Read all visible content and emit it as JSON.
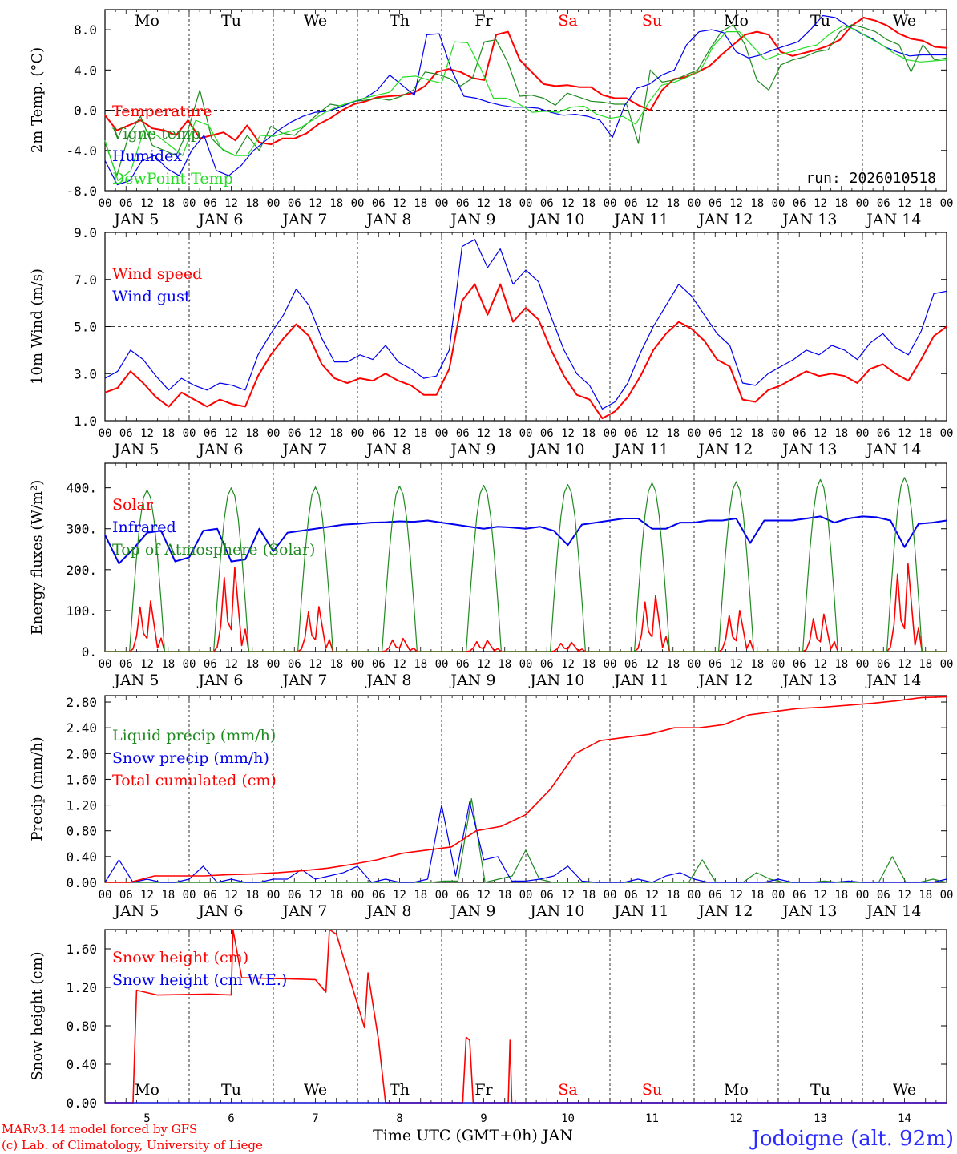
{
  "colors": {
    "red": "#ff0000",
    "green": "#1f8a1f",
    "blue": "#0000ee",
    "lightgreen": "#22dd22",
    "label_blue": "#2b2bff"
  },
  "days": [
    {
      "weekday": "Mo",
      "date": "JAN  5",
      "num": "5",
      "weekend": false
    },
    {
      "weekday": "Tu",
      "date": "JAN  6",
      "num": "6",
      "weekend": false
    },
    {
      "weekday": "We",
      "date": "JAN  7",
      "num": "7",
      "weekend": false
    },
    {
      "weekday": "Th",
      "date": "JAN  8",
      "num": "8",
      "weekend": false
    },
    {
      "weekday": "Fr",
      "date": "JAN  9",
      "num": "9",
      "weekend": false
    },
    {
      "weekday": "Sa",
      "date": "JAN 10",
      "num": "10",
      "weekend": true
    },
    {
      "weekday": "Su",
      "date": "JAN 11",
      "num": "11",
      "weekend": true
    },
    {
      "weekday": "Mo",
      "date": "JAN 12",
      "num": "12",
      "weekend": false
    },
    {
      "weekday": "Tu",
      "date": "JAN 13",
      "num": "13",
      "weekend": false
    },
    {
      "weekday": "We",
      "date": "JAN 14",
      "num": "14",
      "weekend": false
    }
  ],
  "hour_labels": [
    "00",
    "06",
    "12",
    "18"
  ],
  "run_label": "run: 2026010518",
  "footer": {
    "credit1": "MARv3.14 model forced by GFS",
    "credit2": "(c) Lab. of Climatology, University of Liege",
    "xlabel": "Time UTC (GMT+0h) JAN",
    "station": "Jodoigne (alt. 92m)"
  },
  "chart_data": [
    {
      "type": "line",
      "ylabel": "2m Temp. (°C)",
      "ylim": [
        -8,
        10
      ],
      "ticks": [
        "-8.0",
        "-4.0",
        "0.0",
        "4.0",
        "8.0"
      ],
      "tick_values": [
        -8,
        -4,
        0,
        4,
        8
      ],
      "ref_line": 0,
      "x_hours_step": 6,
      "series": [
        {
          "name": "Temperature",
          "color": "#ff0000",
          "width": 2,
          "values": [
            -0.5,
            -2,
            -1.5,
            -1,
            -1.8,
            -2,
            -2.5,
            -1,
            -2.8,
            -2.5,
            -2.2,
            -3,
            -1.5,
            -3.2,
            -3.4,
            -2.8,
            -2.8,
            -2.3,
            -1.4,
            -0.8,
            0,
            0.6,
            0.9,
            1.3,
            1.4,
            1.5,
            1.7,
            2.4,
            3.8,
            4.1,
            3.8,
            3.2,
            3,
            7.5,
            7.8,
            5,
            3.8,
            2.6,
            2.4,
            2.5,
            2.3,
            2.3,
            1.5,
            1.2,
            1.2,
            0.5,
            0,
            2,
            3.1,
            3.3,
            3.8,
            4.4,
            5.5,
            6.5,
            7.5,
            7.8,
            7.5,
            5.8,
            5.4,
            5.7,
            6,
            6.4,
            7,
            8.4,
            9.2,
            8.9,
            8.4,
            7.6,
            7.1,
            6.9,
            6.3,
            6.2
          ]
        },
        {
          "name": "Vigne temp",
          "color": "#1f8a1f",
          "width": 1.2,
          "values": [
            -3.2,
            -6.5,
            -2.5,
            -0.6,
            -3.5,
            -4,
            -4.5,
            -2,
            2,
            -2.8,
            -4,
            -4.5,
            -2.5,
            -4,
            -1.6,
            -2.3,
            -2.5,
            -1.4,
            -0.3,
            0.6,
            0.4,
            0.9,
            1,
            1.2,
            1,
            1.4,
            2,
            3.8,
            3.6,
            3.2,
            2.4,
            3.2,
            6.8,
            7,
            4.7,
            1.4,
            1.5,
            1.2,
            0.5,
            1.7,
            1.3,
            0.9,
            0.8,
            0.6,
            0.6,
            -3.3,
            4,
            2.8,
            3,
            3.5,
            4,
            6,
            7.8,
            8.5,
            6.5,
            3,
            2,
            4.5,
            5,
            5.3,
            5.8,
            6,
            7.8,
            8.5,
            8.2,
            7.8,
            7,
            6.5,
            3.8,
            6.5,
            5,
            5.2
          ]
        },
        {
          "name": "Humidex",
          "color": "#0000ee",
          "width": 1.2,
          "values": [
            -5,
            -7.4,
            -7,
            -5,
            -4.5,
            -5.8,
            -6.5,
            -4,
            -2.5,
            -6,
            -6.5,
            -5.5,
            -4,
            -3,
            -2,
            -1.2,
            -0.6,
            -0.2,
            -0.1,
            0.3,
            0.8,
            1.2,
            2,
            3.5,
            2.5,
            1.5,
            7.5,
            7.6,
            4,
            1.4,
            1.2,
            0.8,
            0.5,
            0.3,
            0.3,
            0.2,
            -0.2,
            -0.5,
            -0.4,
            -0.6,
            -1,
            -2.7,
            0.5,
            2.2,
            2.6,
            3.5,
            4,
            6.5,
            7.8,
            8,
            7.7,
            5.8,
            5.2,
            5.5,
            6,
            6.4,
            6.8,
            8,
            9.4,
            9.2,
            8.4,
            7.7,
            7.1,
            6.3,
            5.8,
            5.4,
            5.5,
            5.5,
            5.5
          ]
        },
        {
          "name": "DewPoint Temp",
          "color": "#22dd22",
          "width": 1.2,
          "values": [
            -3,
            -7,
            -6,
            -2,
            -2.5,
            -3.5,
            -4.5,
            -1,
            -1.5,
            -3.8,
            -4.5,
            -4.5,
            -2.5,
            -2.6,
            -2.2,
            -1.8,
            -1,
            -0.2,
            0.4,
            0.8,
            1.2,
            1.5,
            1.8,
            3.3,
            3.4,
            3,
            2.7,
            6.8,
            6.7,
            4.2,
            1.2,
            1.2,
            0.6,
            -0.2,
            -0.1,
            -0.2,
            0.3,
            0.4,
            -0.4,
            -0.8,
            -0.6,
            -1.4,
            0.8,
            2.5,
            2.8,
            3.3,
            4,
            6.4,
            7.8,
            7.8,
            6.4,
            5,
            5.5,
            5.8,
            6.2,
            6.5,
            7.6,
            8.4,
            8,
            7.2,
            6.5,
            5.6,
            5,
            4.8,
            4.9,
            5
          ]
        }
      ],
      "legend": [
        {
          "label": "Temperature",
          "color": "#ff0000"
        },
        {
          "label": "Vigne temp",
          "color": "#1f8a1f"
        },
        {
          "label": "Humidex",
          "color": "#0000ee"
        },
        {
          "label": "DewPoint Temp",
          "color": "#22dd22"
        }
      ]
    },
    {
      "type": "line",
      "ylabel": "10m Wind (m/s)",
      "ylim": [
        1,
        9
      ],
      "ticks": [
        "1.0",
        "3.0",
        "5.0",
        "7.0",
        "9.0"
      ],
      "tick_values": [
        1,
        3,
        5,
        7,
        9
      ],
      "ref_line": 5,
      "x_hours_step": 6,
      "series": [
        {
          "name": "Wind speed",
          "color": "#ff0000",
          "width": 2,
          "values": [
            2.2,
            2.4,
            3.1,
            2.6,
            2,
            1.6,
            2.2,
            1.9,
            1.6,
            1.9,
            1.7,
            1.6,
            2.9,
            3.8,
            4.5,
            5.1,
            4.6,
            3.4,
            2.8,
            2.6,
            2.8,
            2.7,
            3,
            2.7,
            2.5,
            2.1,
            2.1,
            3.2,
            6.1,
            6.8,
            5.5,
            6.8,
            5.2,
            5.8,
            5.3,
            4,
            2.9,
            2.1,
            1.9,
            1.1,
            1.4,
            2,
            2.9,
            4,
            4.7,
            5.2,
            4.9,
            4.4,
            3.6,
            3.3,
            1.9,
            1.8,
            2.3,
            2.5,
            2.8,
            3.1,
            2.9,
            3,
            2.9,
            2.6,
            3.2,
            3.4,
            3,
            2.7,
            3.6,
            4.6,
            5
          ]
        },
        {
          "name": "Wind gust",
          "color": "#0000ee",
          "width": 1.2,
          "values": [
            2.8,
            3.1,
            4,
            3.6,
            2.9,
            2.3,
            2.8,
            2.5,
            2.3,
            2.6,
            2.5,
            2.3,
            3.8,
            4.7,
            5.5,
            6.6,
            5.9,
            4.5,
            3.5,
            3.5,
            3.8,
            3.6,
            4.2,
            3.5,
            3.2,
            2.8,
            2.9,
            4,
            8.4,
            8.7,
            7.5,
            8.3,
            6.8,
            7.4,
            6.9,
            5.4,
            4,
            3,
            2.5,
            1.5,
            1.8,
            2.6,
            3.9,
            5,
            5.9,
            6.8,
            6.3,
            5.5,
            4.7,
            4.2,
            2.6,
            2.5,
            3,
            3.3,
            3.6,
            4,
            3.8,
            4.2,
            4,
            3.6,
            4.3,
            4.7,
            4.1,
            3.8,
            4.8,
            6.4,
            6.5
          ]
        }
      ],
      "legend": [
        {
          "label": "Wind speed",
          "color": "#ff0000"
        },
        {
          "label": "Wind gust",
          "color": "#0000ee"
        }
      ]
    },
    {
      "type": "line",
      "ylabel": "Energy fluxes (W/m²)",
      "ylim": [
        0,
        460
      ],
      "ticks": [
        "0.",
        "100.",
        "200.",
        "300.",
        "400."
      ],
      "tick_values": [
        0,
        100,
        200,
        300,
        400
      ],
      "ref_line": null,
      "x_hours_step": 6,
      "series": [
        {
          "name": "Solar",
          "color": "#ff0000",
          "width": 1.6,
          "peaks": [
            135,
            225,
            120,
            35,
            30,
            25,
            150,
            110,
            100,
            235
          ]
        },
        {
          "name": "Infrared",
          "color": "#0000ee",
          "width": 2,
          "values": [
            285,
            215,
            250,
            290,
            295,
            220,
            230,
            295,
            300,
            220,
            225,
            300,
            245,
            290,
            295,
            300,
            305,
            310,
            312,
            315,
            316,
            318,
            317,
            320,
            315,
            310,
            305,
            300,
            305,
            303,
            300,
            305,
            295,
            260,
            310,
            315,
            320,
            325,
            325,
            300,
            300,
            315,
            315,
            320,
            320,
            325,
            265,
            320,
            320,
            320,
            325,
            330,
            315,
            325,
            330,
            328,
            320,
            255,
            312,
            315,
            320
          ]
        },
        {
          "name": "Top of Atmosphere (Solar)",
          "color": "#1f8a1f",
          "width": 1.2,
          "peaks": [
            395,
            400,
            402,
            404,
            406,
            408,
            412,
            415,
            420,
            425
          ]
        }
      ],
      "legend": [
        {
          "label": "Solar",
          "color": "#ff0000"
        },
        {
          "label": "Infrared",
          "color": "#0000ee"
        },
        {
          "label": "Top of Atmosphere (Solar)",
          "color": "#1f8a1f"
        }
      ]
    },
    {
      "type": "line",
      "ylabel": "Precip (mm/h)",
      "ylim": [
        0,
        2.9
      ],
      "ticks": [
        "0.00",
        "0.40",
        "0.80",
        "1.20",
        "1.60",
        "2.00",
        "2.40",
        "2.80"
      ],
      "tick_values": [
        0,
        0.4,
        0.8,
        1.2,
        1.6,
        2.0,
        2.4,
        2.8
      ],
      "ref_line": null,
      "x_hours_step": 6,
      "series": [
        {
          "name": "Liquid precip (mm/h)",
          "color": "#1f8a1f",
          "width": 1.2,
          "values": [
            0,
            0,
            0,
            0,
            0,
            0,
            0,
            0,
            0,
            0,
            0,
            0,
            0,
            0,
            0,
            0,
            0,
            0,
            0,
            0,
            0,
            0,
            0,
            0,
            0,
            0.02,
            0.02,
            1.3,
            0,
            0.05,
            0.1,
            0.5,
            0.05,
            0,
            0,
            0,
            0,
            0,
            0,
            0,
            0,
            0,
            0,
            0,
            0.35,
            0,
            0,
            0,
            0.15,
            0.05,
            0,
            0,
            0,
            0.02,
            0,
            0,
            0,
            0,
            0.4,
            0,
            0,
            0.05,
            0
          ]
        },
        {
          "name": "Snow precip (mm/h)",
          "color": "#0000ee",
          "width": 1.2,
          "values": [
            0,
            0.35,
            0,
            0.05,
            0,
            0,
            0.05,
            0.25,
            0,
            0.05,
            0,
            0,
            0.05,
            0.05,
            0.2,
            0.05,
            0.1,
            0.15,
            0.25,
            0,
            0.05,
            0,
            0,
            0.05,
            1.2,
            0.1,
            1.25,
            0.35,
            0.4,
            0.02,
            0.02,
            0.05,
            0.1,
            0.25,
            0.02,
            0,
            0,
            0,
            0.05,
            0,
            0.1,
            0.15,
            0.05,
            0,
            0,
            0,
            0,
            0,
            0.05,
            0,
            0,
            0,
            0,
            0.02,
            0,
            0,
            0,
            0,
            0,
            0,
            0.05
          ]
        },
        {
          "name": "Total cumulated (cm)",
          "color": "#ff0000",
          "width": 1.6,
          "values": [
            0,
            0,
            0.1,
            0.1,
            0.1,
            0.12,
            0.13,
            0.15,
            0.18,
            0.22,
            0.28,
            0.35,
            0.45,
            0.5,
            0.55,
            0.8,
            0.87,
            1.05,
            1.45,
            2.0,
            2.2,
            2.25,
            2.3,
            2.4,
            2.4,
            2.45,
            2.6,
            2.65,
            2.7,
            2.72,
            2.75,
            2.78,
            2.82,
            2.87,
            2.88
          ]
        }
      ],
      "legend": [
        {
          "label": "Liquid precip (mm/h)",
          "color": "#1f8a1f"
        },
        {
          "label": "Snow precip (mm/h)",
          "color": "#0000ee"
        },
        {
          "label": "Total cumulated (cm)",
          "color": "#ff0000"
        }
      ]
    },
    {
      "type": "line",
      "ylabel": "Snow height (cm)",
      "ylim": [
        0,
        1.8
      ],
      "ticks": [
        "0.00",
        "0.40",
        "0.80",
        "1.20",
        "1.60"
      ],
      "tick_values": [
        0,
        0.4,
        0.8,
        1.2,
        1.6
      ],
      "ref_line": null,
      "x_hours_step": 6,
      "series": [
        {
          "name": "Snow height (cm)",
          "color": "#ff0000",
          "width": 1.6,
          "points": [
            [
              0,
              0
            ],
            [
              8,
              0
            ],
            [
              9,
              1.17
            ],
            [
              15,
              1.12
            ],
            [
              30,
              1.13
            ],
            [
              36,
              1.12
            ],
            [
              36.5,
              1.8
            ],
            [
              39,
              1.3
            ],
            [
              60,
              1.28
            ],
            [
              63,
              1.15
            ],
            [
              64,
              1.8
            ],
            [
              66,
              1.75
            ],
            [
              74,
              0.78
            ],
            [
              75,
              1.35
            ],
            [
              78,
              0.65
            ],
            [
              80,
              0
            ],
            [
              102,
              0
            ],
            [
              103,
              0.68
            ],
            [
              104,
              0.65
            ],
            [
              105,
              0
            ],
            [
              115,
              0
            ],
            [
              115.5,
              0.65
            ],
            [
              116,
              0
            ],
            [
              240,
              0
            ]
          ]
        },
        {
          "name": "Snow height (cm W.E.)",
          "color": "#0000ee",
          "width": 1.2,
          "points": [
            [
              0,
              0
            ],
            [
              240,
              0
            ]
          ]
        }
      ],
      "legend": [
        {
          "label": "Snow height (cm)",
          "color": "#ff0000"
        },
        {
          "label": "Snow height (cm W.E.)",
          "color": "#0000ee"
        }
      ]
    }
  ]
}
